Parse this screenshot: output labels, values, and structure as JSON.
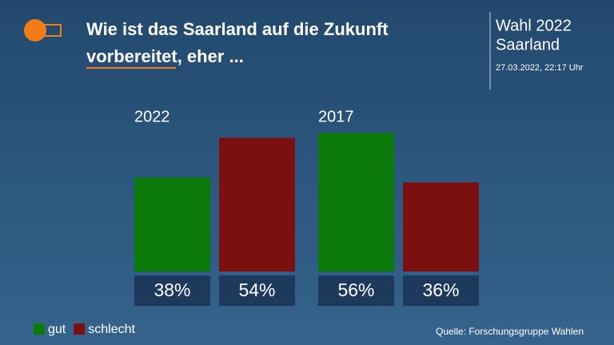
{
  "header": {
    "election": "Wahl 2022",
    "region": "Saarland",
    "timestamp": "27.03.2022, 22:17 Uhr"
  },
  "chart_data": {
    "type": "bar",
    "title": "Wie ist das Saarland auf die Zukunft vorbereitet, eher ...",
    "categories": [
      "2022",
      "2017"
    ],
    "series": [
      {
        "name": "gut",
        "color": "#0b7a0b",
        "values": [
          38,
          56
        ],
        "value_labels": [
          "38%",
          "56%"
        ]
      },
      {
        "name": "schlecht",
        "color": "#7a1010",
        "values": [
          54,
          36
        ],
        "value_labels": [
          "54%",
          "36%"
        ]
      }
    ],
    "legend": "bottom-left",
    "source": "Quelle: Forschungsgruppe Wahlen"
  }
}
